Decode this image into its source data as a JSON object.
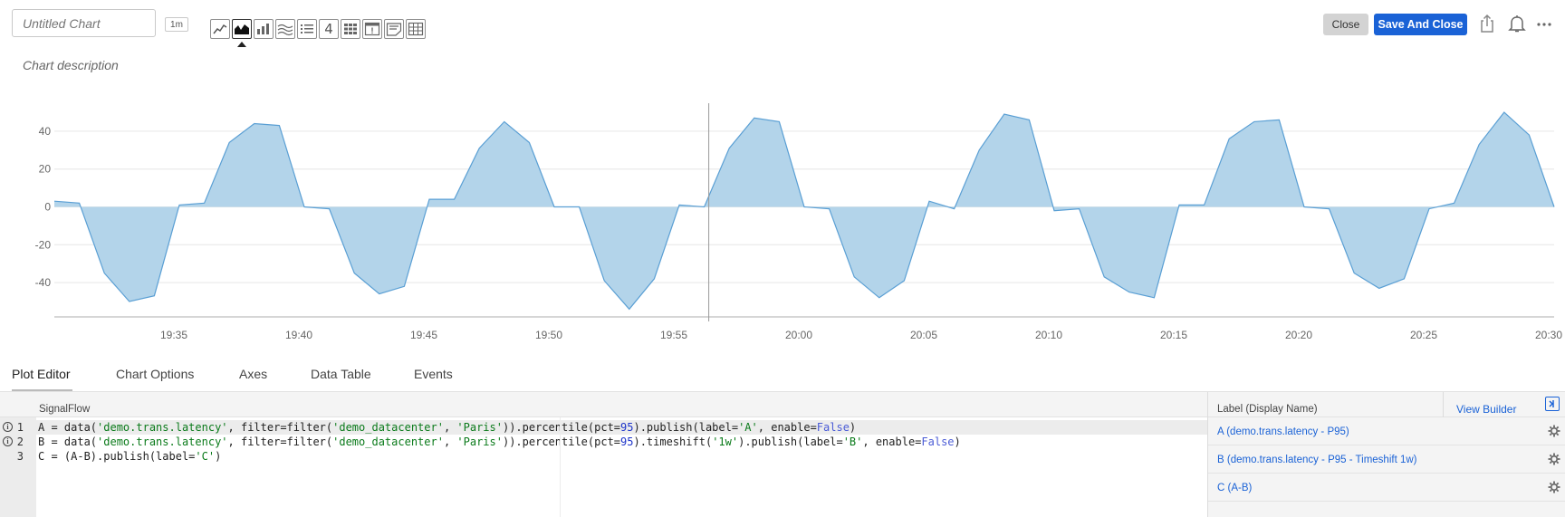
{
  "header": {
    "title_placeholder": "Untitled Chart",
    "resolution": "1m",
    "description": "Chart description",
    "close_label": "Close",
    "save_label": "Save And Close",
    "plot_types": [
      "line-chart-icon",
      "area-chart-icon",
      "column-chart-icon",
      "histogram-icon",
      "list-icon",
      "single-value-icon",
      "heatmap-icon",
      "event-feed-icon",
      "text-note-icon",
      "table-icon"
    ],
    "active_plot_type": "area-chart-icon",
    "single_value_glyph": "4",
    "event_glyph": "!"
  },
  "colors": {
    "area_fill": "#b3d4ea",
    "area_line": "#5a9fd4",
    "accent": "#1a62d6",
    "grid": "#e6e6e6"
  },
  "chart_data": {
    "type": "area",
    "title": "",
    "xlabel": "",
    "ylabel": "",
    "ylim": [
      -57,
      57
    ],
    "yticks": [
      40,
      20,
      0,
      -20,
      -40
    ],
    "ytick_labels": [
      "40",
      "20",
      "0",
      "-20",
      "-40"
    ],
    "xticks_minutes": [
      5,
      10,
      15,
      20,
      25,
      30,
      35,
      40,
      45,
      50,
      55,
      60
    ],
    "xtick_labels": [
      "19:35",
      "19:40",
      "19:45",
      "19:50",
      "19:55",
      "20:00",
      "20:05",
      "20:10",
      "20:15",
      "20:20",
      "20:25",
      "20:30"
    ],
    "x_start": "19:30",
    "x_end": "20:30",
    "cursor": "19:56",
    "series": [
      {
        "values_by_minute": [
          [
            0,
            3
          ],
          [
            1,
            2
          ],
          [
            2,
            -35
          ],
          [
            3,
            -50
          ],
          [
            4,
            -47
          ],
          [
            5,
            1
          ],
          [
            6,
            2
          ],
          [
            7,
            34
          ],
          [
            8,
            44
          ],
          [
            9,
            43
          ],
          [
            10,
            0
          ],
          [
            11,
            -1
          ],
          [
            12,
            -35
          ],
          [
            13,
            -46
          ],
          [
            14,
            -42
          ],
          [
            15,
            4
          ],
          [
            16,
            4
          ],
          [
            17,
            31
          ],
          [
            18,
            45
          ],
          [
            19,
            34
          ],
          [
            20,
            0
          ],
          [
            21,
            0
          ],
          [
            22,
            -39
          ],
          [
            23,
            -54
          ],
          [
            24,
            -38
          ],
          [
            25,
            1
          ],
          [
            26,
            0
          ],
          [
            27,
            31
          ],
          [
            28,
            47
          ],
          [
            29,
            45
          ],
          [
            30,
            0
          ],
          [
            31,
            -1
          ],
          [
            32,
            -37
          ],
          [
            33,
            -48
          ],
          [
            34,
            -39
          ],
          [
            35,
            3
          ],
          [
            36,
            -1
          ],
          [
            37,
            30
          ],
          [
            38,
            49
          ],
          [
            39,
            46
          ],
          [
            40,
            -2
          ],
          [
            41,
            -1
          ],
          [
            42,
            -37
          ],
          [
            43,
            -45
          ],
          [
            44,
            -48
          ],
          [
            45,
            1
          ],
          [
            46,
            1
          ],
          [
            47,
            36
          ],
          [
            48,
            45
          ],
          [
            49,
            46
          ],
          [
            50,
            0
          ],
          [
            51,
            -1
          ],
          [
            52,
            -35
          ],
          [
            53,
            -43
          ],
          [
            54,
            -38
          ],
          [
            55,
            -1
          ],
          [
            56,
            2
          ],
          [
            57,
            33
          ],
          [
            58,
            50
          ],
          [
            59,
            38
          ],
          [
            60,
            0
          ]
        ]
      }
    ]
  },
  "tabs": [
    "Plot Editor",
    "Chart Options",
    "Axes",
    "Data Table",
    "Events"
  ],
  "editor": {
    "header": "SignalFlow",
    "lines": [
      {
        "number": "1",
        "info": "i",
        "tokens": [
          {
            "t": "A = data(",
            "c": ""
          },
          {
            "t": "'demo.trans.latency'",
            "c": "str"
          },
          {
            "t": ", filter=filter(",
            "c": ""
          },
          {
            "t": "'demo_datacenter'",
            "c": "str"
          },
          {
            "t": ", ",
            "c": ""
          },
          {
            "t": "'Paris'",
            "c": "str"
          },
          {
            "t": ")).percentile(pct=",
            "c": ""
          },
          {
            "t": "95",
            "c": "num"
          },
          {
            "t": ").publish(label=",
            "c": ""
          },
          {
            "t": "'A'",
            "c": "str"
          },
          {
            "t": ", enable=",
            "c": ""
          },
          {
            "t": "False",
            "c": "kw"
          },
          {
            "t": ")",
            "c": ""
          }
        ]
      },
      {
        "number": "2",
        "info": "i",
        "tokens": [
          {
            "t": "B = data(",
            "c": ""
          },
          {
            "t": "'demo.trans.latency'",
            "c": "str"
          },
          {
            "t": ", filter=filter(",
            "c": ""
          },
          {
            "t": "'demo_datacenter'",
            "c": "str"
          },
          {
            "t": ", ",
            "c": ""
          },
          {
            "t": "'Paris'",
            "c": "str"
          },
          {
            "t": ")).percentile(pct=",
            "c": ""
          },
          {
            "t": "95",
            "c": "num"
          },
          {
            "t": ").timeshift(",
            "c": ""
          },
          {
            "t": "'1w'",
            "c": "str"
          },
          {
            "t": ").publish(label=",
            "c": ""
          },
          {
            "t": "'B'",
            "c": "str"
          },
          {
            "t": ", enable=",
            "c": ""
          },
          {
            "t": "False",
            "c": "kw"
          },
          {
            "t": ")",
            "c": ""
          }
        ]
      },
      {
        "number": "3",
        "info": "",
        "tokens": [
          {
            "t": "C = (A-B).publish(label=",
            "c": ""
          },
          {
            "t": "'C'",
            "c": "str"
          },
          {
            "t": ")",
            "c": ""
          }
        ]
      }
    ]
  },
  "label_panel": {
    "header": "Label (Display Name)",
    "view_builder": "View Builder",
    "rows": [
      "A (demo.trans.latency - P95)",
      "B (demo.trans.latency - P95 - Timeshift 1w)",
      "C (A-B)"
    ]
  }
}
